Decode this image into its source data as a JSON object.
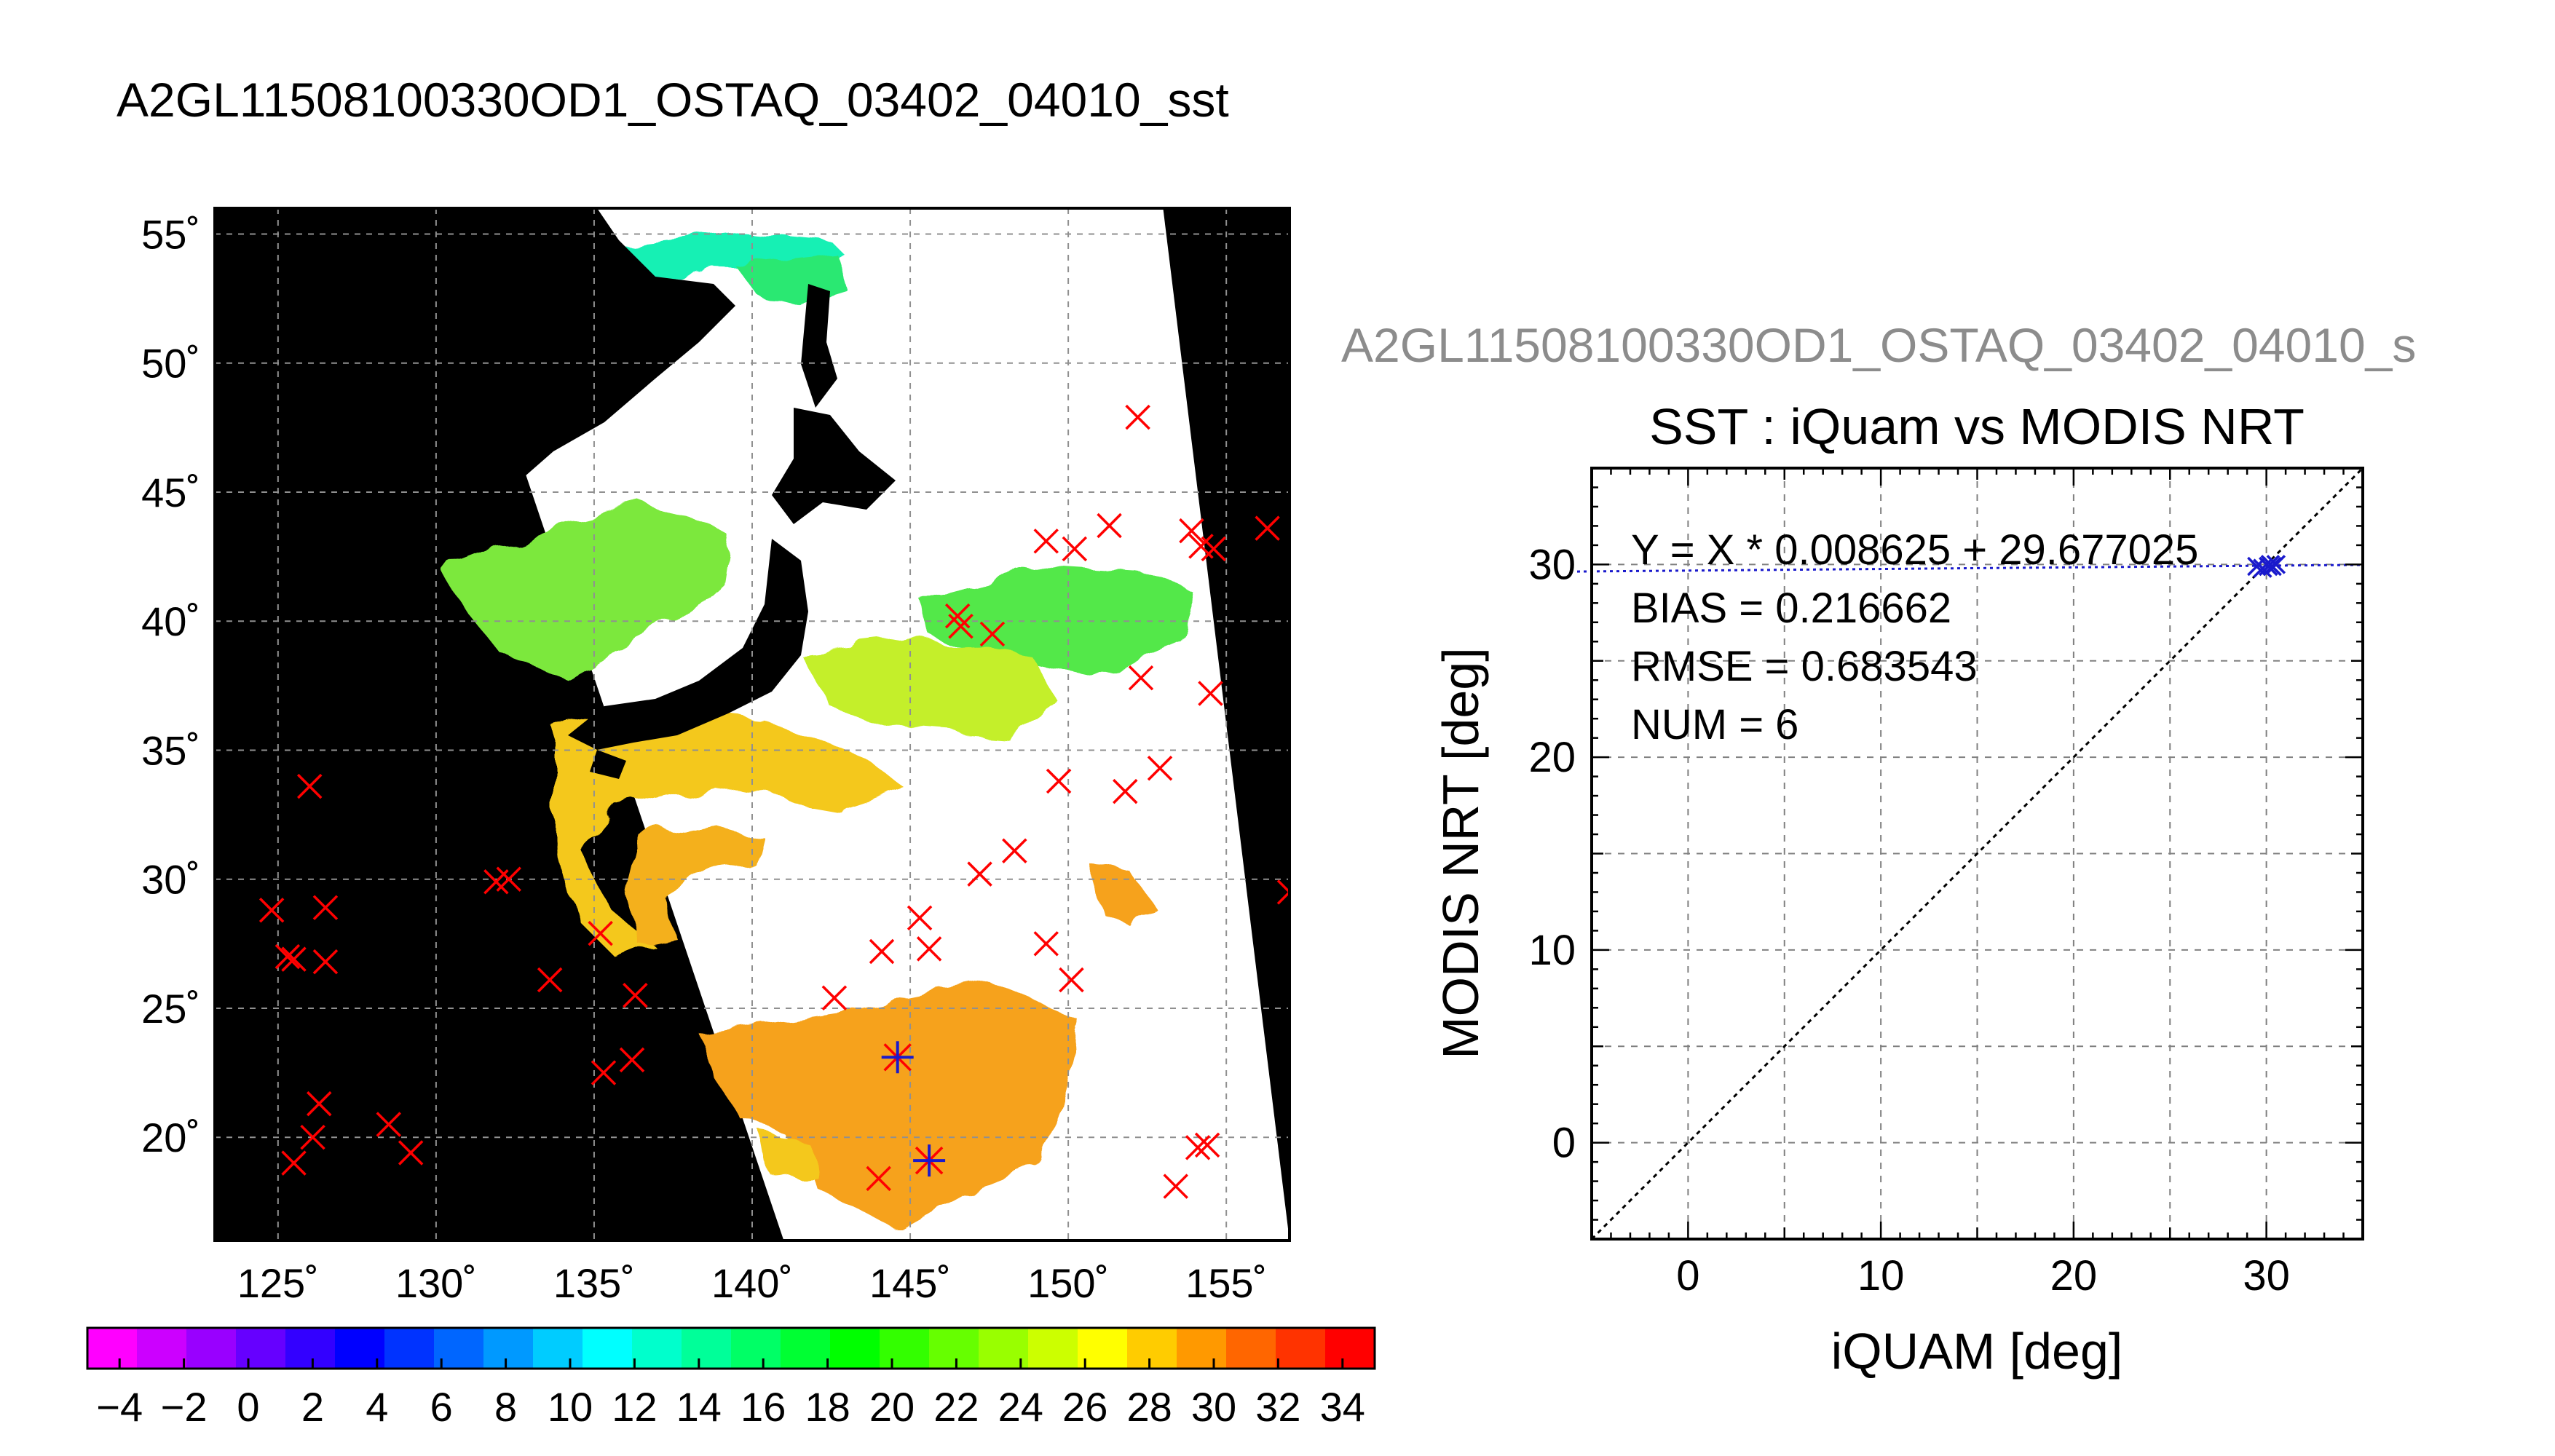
{
  "map_title": "A2GL11508100330OD1_OSTAQ_03402_04010_sst",
  "scatter_supertitle": "A2GL11508100330OD1_OSTAQ_03402_04010_s",
  "colors": {
    "match_red": "#ff0000",
    "match_blue": "#1a1acc",
    "land_mask": "#000000",
    "no_data": "#ffffff"
  },
  "map": {
    "lon_ticks": [
      "125˚",
      "130˚",
      "135˚",
      "140˚",
      "145˚",
      "150˚",
      "155˚"
    ],
    "lat_ticks": [
      "55˚",
      "50˚",
      "45˚",
      "40˚",
      "35˚",
      "30˚",
      "25˚",
      "20˚"
    ],
    "lon_range": [
      123,
      157
    ],
    "lat_range": [
      16,
      56
    ],
    "swath_corners": [
      [
        141,
        16
      ],
      [
        157,
        16
      ],
      [
        153,
        56
      ],
      [
        130,
        56
      ]
    ],
    "iquam_points_red": [
      [
        126,
        33.6
      ],
      [
        124.8,
        28.8
      ],
      [
        125.3,
        27
      ],
      [
        125.5,
        26.9
      ],
      [
        126.5,
        28.9
      ],
      [
        126.5,
        26.8
      ],
      [
        126.3,
        21.3
      ],
      [
        126.1,
        20
      ],
      [
        125.5,
        19
      ],
      [
        128.5,
        20.5
      ],
      [
        129.2,
        19.4
      ],
      [
        131.9,
        29.9
      ],
      [
        132.3,
        30
      ],
      [
        133.6,
        26.1
      ],
      [
        135.2,
        27.9
      ],
      [
        135.3,
        22.5
      ],
      [
        136.2,
        23
      ],
      [
        136.3,
        25.5
      ],
      [
        142.6,
        25.4
      ],
      [
        144.1,
        27.2
      ],
      [
        144,
        18.4
      ],
      [
        145.3,
        28.5
      ],
      [
        145.6,
        27.3
      ],
      [
        146.5,
        40.2
      ],
      [
        146.6,
        39.8
      ],
      [
        147.2,
        30.2
      ],
      [
        147.6,
        39.5
      ],
      [
        148.3,
        31.1
      ],
      [
        149.3,
        43.1
      ],
      [
        149.3,
        27.5
      ],
      [
        149.7,
        33.8
      ],
      [
        150.1,
        26.1
      ],
      [
        150.2,
        42.8
      ],
      [
        151.3,
        43.7
      ],
      [
        151.8,
        33.4
      ],
      [
        152.2,
        47.9
      ],
      [
        152.3,
        37.8
      ],
      [
        152.9,
        34.3
      ],
      [
        153.4,
        18.1
      ],
      [
        153.9,
        43.5
      ],
      [
        154.1,
        19.6
      ],
      [
        154.2,
        42.9
      ],
      [
        154.4,
        19.7
      ],
      [
        154.5,
        37.2
      ],
      [
        154.6,
        42.8
      ],
      [
        156.3,
        43.6
      ],
      [
        157,
        29.5
      ]
    ],
    "iquam_points_blue": [
      [
        144.6,
        23.1
      ],
      [
        145.6,
        19.1
      ]
    ]
  },
  "colorbar": {
    "ticks": [
      "−4",
      "−2",
      "0",
      "2",
      "4",
      "6",
      "8",
      "10",
      "12",
      "14",
      "16",
      "18",
      "20",
      "22",
      "24",
      "26",
      "28",
      "30",
      "32",
      "34"
    ],
    "range": [
      -5,
      35
    ],
    "colors": [
      "#ff00ff",
      "#cc00ff",
      "#9900ff",
      "#6600ff",
      "#3300ff",
      "#0000ff",
      "#0033ff",
      "#0066ff",
      "#0099ff",
      "#00ccff",
      "#00ffff",
      "#00ffcc",
      "#00ff99",
      "#00ff66",
      "#00ff33",
      "#00ff00",
      "#33ff00",
      "#66ff00",
      "#99ff00",
      "#ccff00",
      "#ffff00",
      "#ffcc00",
      "#ff9900",
      "#ff6600",
      "#ff3300",
      "#ff0000"
    ]
  },
  "chart_data": {
    "type": "scatter",
    "title": "SST : iQuam vs MODIS NRT",
    "xlabel": "iQUAM [deg]",
    "ylabel": "MODIS NRT [deg]",
    "xlim": [
      -5,
      35
    ],
    "ylim": [
      -5,
      35
    ],
    "xticks": [
      "0",
      "10",
      "20",
      "30"
    ],
    "yticks": [
      "0",
      "10",
      "20",
      "30"
    ],
    "grid": true,
    "annotations": [
      "Y = X * 0.008625 + 29.677025",
      "BIAS = 0.216662",
      "RMSE = 0.683543",
      "NUM = 6"
    ],
    "points": [
      [
        29.5,
        29.9
      ],
      [
        29.8,
        29.8
      ],
      [
        30.1,
        29.9
      ],
      [
        30.2,
        30.0
      ],
      [
        30.3,
        29.9
      ],
      [
        30.5,
        30.0
      ]
    ]
  }
}
